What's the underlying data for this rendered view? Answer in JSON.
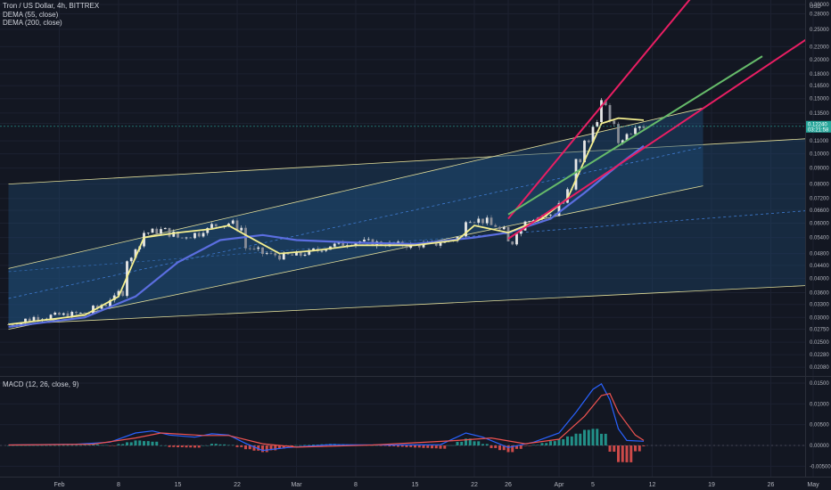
{
  "header": {
    "title": "Tron / US Dollar, 4h, BITTREX",
    "indicator_1": "DEMA (55, close)",
    "indicator_2": "DEMA (200, close)",
    "macd_label": "MACD (12, 26, close, 9)"
  },
  "currency": "USD",
  "price_axis_labels": [
    "0.30000",
    "0.28000",
    "0.25000",
    "0.22000",
    "0.20000",
    "0.18000",
    "0.16500",
    "0.15000",
    "0.13500",
    "0.12500",
    "0.11000",
    "0.10000",
    "0.09000",
    "0.08000",
    "0.07200",
    "0.06600",
    "0.06000",
    "0.05400",
    "0.04800",
    "0.04400",
    "0.04000",
    "0.03600",
    "0.03300",
    "0.03000",
    "0.02750",
    "0.02500",
    "0.02280",
    "0.02080"
  ],
  "last_price": "0.12240",
  "last_price_secondary": "03:21:58",
  "macd_axis_labels": [
    "0.01500",
    "0.01000",
    "0.00500",
    "0.00000",
    "-0.00500"
  ],
  "date_labels": [
    "Feb",
    "8",
    "15",
    "22",
    "Mar",
    "8",
    "15",
    "22",
    "26",
    "Apr",
    "5",
    "12",
    "19",
    "26",
    "May"
  ],
  "colors": {
    "background": "#131722",
    "dema55": "#f5ef8f",
    "dema200": "#5b6ee0",
    "channel_fill": "#1f4e79",
    "channel_line": "#e3df9a",
    "red_trendline": "#e91e63",
    "green_trendline": "#66bb6a",
    "macd_line": "#2962ff",
    "signal_line": "#ef5350",
    "hist_up": "#26a69a",
    "hist_down": "#ef5350",
    "price_badge": "#26a69a"
  },
  "chart_data": [
    {
      "type": "candlestick",
      "title": "Tron / US Dollar, 4h, BITTREX",
      "x_range": [
        "2018-01-26",
        "2018-05-01"
      ],
      "y_scale": "log",
      "ylim": [
        0.0195,
        0.31
      ],
      "close_path": [
        [
          "2018-01-26",
          0.0285
        ],
        [
          "2018-01-29",
          0.03
        ],
        [
          "2018-02-01",
          0.0305
        ],
        [
          "2018-02-04",
          0.031
        ],
        [
          "2018-02-06",
          0.033
        ],
        [
          "2018-02-08",
          0.036
        ],
        [
          "2018-02-09",
          0.046
        ],
        [
          "2018-02-11",
          0.056
        ],
        [
          "2018-02-13",
          0.057
        ],
        [
          "2018-02-15",
          0.054
        ],
        [
          "2018-02-17",
          0.0555
        ],
        [
          "2018-02-19",
          0.059
        ],
        [
          "2018-02-21",
          0.06
        ],
        [
          "2018-02-22",
          0.058
        ],
        [
          "2018-02-23",
          0.05
        ],
        [
          "2018-02-25",
          0.048
        ],
        [
          "2018-02-27",
          0.047
        ],
        [
          "2018-03-01",
          0.0475
        ],
        [
          "2018-03-03",
          0.049
        ],
        [
          "2018-03-05",
          0.051
        ],
        [
          "2018-03-08",
          0.0525
        ],
        [
          "2018-03-11",
          0.0515
        ],
        [
          "2018-03-14",
          0.051
        ],
        [
          "2018-03-17",
          0.0515
        ],
        [
          "2018-03-20",
          0.054
        ],
        [
          "2018-03-21",
          0.062
        ],
        [
          "2018-03-23",
          0.061
        ],
        [
          "2018-03-25",
          0.057
        ],
        [
          "2018-03-26",
          0.052
        ],
        [
          "2018-03-28",
          0.062
        ],
        [
          "2018-03-31",
          0.064
        ],
        [
          "2018-04-02",
          0.076
        ],
        [
          "2018-04-03",
          0.095
        ],
        [
          "2018-04-05",
          0.125
        ],
        [
          "2018-04-06",
          0.145
        ],
        [
          "2018-04-07",
          0.125
        ],
        [
          "2018-04-08",
          0.11
        ],
        [
          "2018-04-09",
          0.118
        ],
        [
          "2018-04-10",
          0.124
        ],
        [
          "2018-04-11",
          0.1224
        ]
      ],
      "dema_55": [
        [
          "2018-01-26",
          0.0285
        ],
        [
          "2018-02-04",
          0.0305
        ],
        [
          "2018-02-08",
          0.035
        ],
        [
          "2018-02-11",
          0.054
        ],
        [
          "2018-02-15",
          0.056
        ],
        [
          "2018-02-19",
          0.0575
        ],
        [
          "2018-02-21",
          0.059
        ],
        [
          "2018-02-23",
          0.055
        ],
        [
          "2018-02-27",
          0.048
        ],
        [
          "2018-03-03",
          0.049
        ],
        [
          "2018-03-08",
          0.051
        ],
        [
          "2018-03-15",
          0.051
        ],
        [
          "2018-03-20",
          0.053
        ],
        [
          "2018-03-22",
          0.059
        ],
        [
          "2018-03-26",
          0.056
        ],
        [
          "2018-03-30",
          0.062
        ],
        [
          "2018-04-02",
          0.072
        ],
        [
          "2018-04-04",
          0.095
        ],
        [
          "2018-04-06",
          0.125
        ],
        [
          "2018-04-08",
          0.13
        ],
        [
          "2018-04-11",
          0.128
        ]
      ],
      "dema_200": [
        [
          "2018-01-26",
          0.028
        ],
        [
          "2018-02-04",
          0.03
        ],
        [
          "2018-02-10",
          0.035
        ],
        [
          "2018-02-15",
          0.045
        ],
        [
          "2018-02-20",
          0.053
        ],
        [
          "2018-02-25",
          0.055
        ],
        [
          "2018-03-01",
          0.053
        ],
        [
          "2018-03-08",
          0.052
        ],
        [
          "2018-03-15",
          0.0515
        ],
        [
          "2018-03-22",
          0.054
        ],
        [
          "2018-03-26",
          0.056
        ],
        [
          "2018-03-31",
          0.062
        ],
        [
          "2018-04-04",
          0.075
        ],
        [
          "2018-04-08",
          0.092
        ],
        [
          "2018-04-11",
          0.106
        ]
      ],
      "channel_wide": {
        "upper": [
          [
            "2018-01-26",
            0.08
          ],
          [
            "2018-05-01",
            0.112
          ]
        ],
        "lower": [
          [
            "2018-01-26",
            0.0285
          ],
          [
            "2018-05-01",
            0.038
          ]
        ],
        "median": [
          [
            "2018-01-26",
            0.042
          ],
          [
            "2018-05-01",
            0.066
          ]
        ]
      },
      "channel_narrow": {
        "upper": [
          [
            "2018-01-26",
            0.043
          ],
          [
            "2018-04-18",
            0.14
          ]
        ],
        "lower": [
          [
            "2018-01-26",
            0.0275
          ],
          [
            "2018-04-18",
            0.079
          ]
        ],
        "median": [
          [
            "2018-01-26",
            0.0345
          ],
          [
            "2018-04-18",
            0.105
          ]
        ]
      },
      "trendlines": [
        {
          "color": "red",
          "points": [
            [
              "2018-03-26",
              0.062
            ],
            [
              "2018-04-18",
              0.35
            ]
          ]
        },
        {
          "color": "red",
          "points": [
            [
              "2018-03-26",
              0.0535
            ],
            [
              "2018-05-01",
              0.24
            ]
          ]
        },
        {
          "color": "green",
          "points": [
            [
              "2018-03-26",
              0.064
            ],
            [
              "2018-04-25",
              0.205
            ]
          ]
        }
      ]
    },
    {
      "type": "macd",
      "title": "MACD (12, 26, close, 9)",
      "ylim": [
        -0.0075,
        0.0165
      ],
      "macd_path": [
        [
          "2018-01-26",
          0.0001
        ],
        [
          "2018-02-03",
          0.0003
        ],
        [
          "2018-02-07",
          0.0008
        ],
        [
          "2018-02-10",
          0.003
        ],
        [
          "2018-02-12",
          0.0035
        ],
        [
          "2018-02-14",
          0.0025
        ],
        [
          "2018-02-17",
          0.002
        ],
        [
          "2018-02-19",
          0.0028
        ],
        [
          "2018-02-21",
          0.0025
        ],
        [
          "2018-02-23",
          0.0005
        ],
        [
          "2018-02-25",
          -0.0012
        ],
        [
          "2018-02-28",
          -0.0005
        ],
        [
          "2018-03-05",
          0.0002
        ],
        [
          "2018-03-12",
          0.0001
        ],
        [
          "2018-03-18",
          0.0002
        ],
        [
          "2018-03-21",
          0.003
        ],
        [
          "2018-03-23",
          0.002
        ],
        [
          "2018-03-26",
          -0.0005
        ],
        [
          "2018-03-29",
          0.0008
        ],
        [
          "2018-04-01",
          0.003
        ],
        [
          "2018-04-03",
          0.008
        ],
        [
          "2018-04-05",
          0.0135
        ],
        [
          "2018-04-06",
          0.0148
        ],
        [
          "2018-04-07",
          0.011
        ],
        [
          "2018-04-08",
          0.004
        ],
        [
          "2018-04-09",
          0.0012
        ],
        [
          "2018-04-11",
          0.001
        ]
      ],
      "signal_path": [
        [
          "2018-01-26",
          0.0001
        ],
        [
          "2018-02-05",
          0.0003
        ],
        [
          "2018-02-10",
          0.0018
        ],
        [
          "2018-02-13",
          0.003
        ],
        [
          "2018-02-18",
          0.0024
        ],
        [
          "2018-02-21",
          0.0024
        ],
        [
          "2018-02-25",
          0.0004
        ],
        [
          "2018-03-01",
          -0.0004
        ],
        [
          "2018-03-10",
          0.0001
        ],
        [
          "2018-03-20",
          0.0012
        ],
        [
          "2018-03-24",
          0.0018
        ],
        [
          "2018-03-28",
          0.0004
        ],
        [
          "2018-04-01",
          0.0015
        ],
        [
          "2018-04-04",
          0.007
        ],
        [
          "2018-04-06",
          0.012
        ],
        [
          "2018-04-07",
          0.0125
        ],
        [
          "2018-04-08",
          0.008
        ],
        [
          "2018-04-10",
          0.0025
        ],
        [
          "2018-04-11",
          0.0012
        ]
      ]
    }
  ]
}
